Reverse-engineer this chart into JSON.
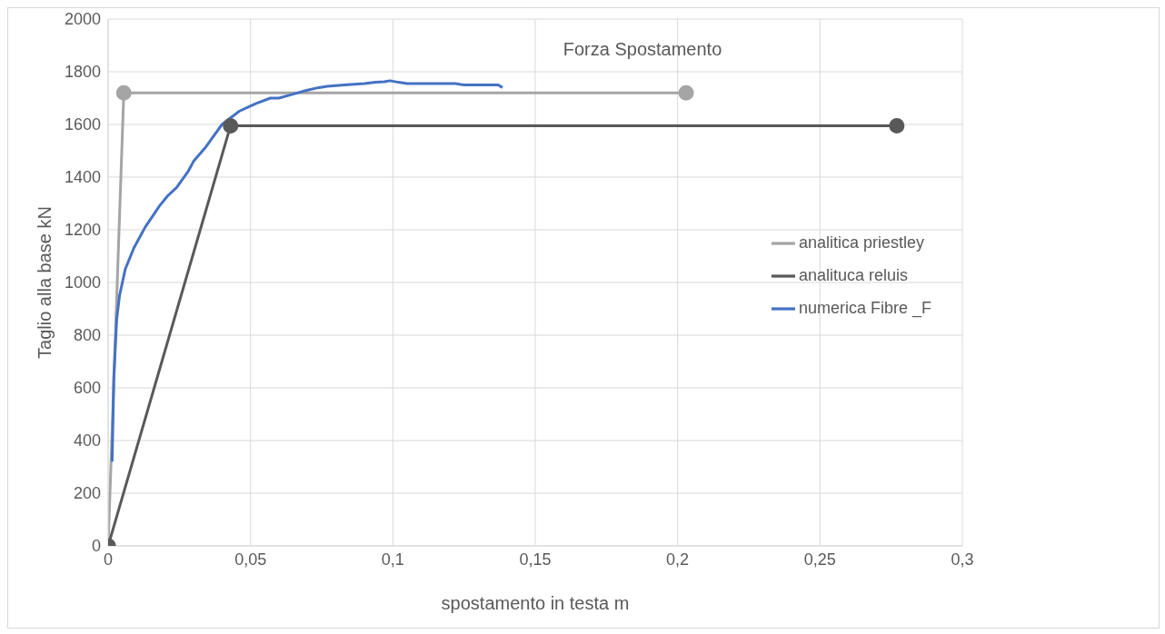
{
  "chart_data": {
    "type": "line",
    "title": "Forza Spostamento",
    "xlabel": "spostamento in testa   m",
    "ylabel": "Taglio alla base  kN",
    "xlim": [
      0,
      0.3
    ],
    "xticks": [
      0,
      {
        "value": 0.05,
        "label": "0,05"
      },
      {
        "value": 0.1,
        "label": "0,1"
      },
      {
        "value": 0.15,
        "label": "0,15"
      },
      {
        "value": 0.2,
        "label": "0,2"
      },
      {
        "value": 0.25,
        "label": "0,25"
      },
      {
        "value": 0.3,
        "label": "0,3"
      }
    ],
    "ylim": [
      0,
      2000
    ],
    "yticks": [
      0,
      200,
      400,
      600,
      800,
      1000,
      1200,
      1400,
      1600,
      1800,
      2000
    ],
    "grid": true,
    "legend": "right",
    "series": [
      {
        "name": "analitica priestley",
        "color": "#a5a5a5",
        "marker": "circle",
        "x": [
          0,
          0.0055,
          0.203
        ],
        "values": [
          0,
          1720,
          1720
        ]
      },
      {
        "name": "numerica Fibre _F",
        "color": "#4472c4",
        "marker": "none",
        "x": [
          0.0014,
          0.002,
          0.003,
          0.004,
          0.006,
          0.009,
          0.013,
          0.018,
          0.021,
          0.024,
          0.028,
          0.03,
          0.034,
          0.036,
          0.04,
          0.043,
          0.046,
          0.049,
          0.052,
          0.057,
          0.06,
          0.065,
          0.07,
          0.074,
          0.077,
          0.083,
          0.09,
          0.094,
          0.097,
          0.099,
          0.102,
          0.105,
          0.122,
          0.125,
          0.137,
          0.1385
        ],
        "values": [
          320,
          640,
          860,
          950,
          1050,
          1130,
          1210,
          1290,
          1330,
          1360,
          1420,
          1460,
          1510,
          1540,
          1600,
          1625,
          1650,
          1665,
          1680,
          1700,
          1700,
          1715,
          1730,
          1740,
          1745,
          1750,
          1755,
          1760,
          1762,
          1766,
          1760,
          1755,
          1755,
          1750,
          1750,
          1740
        ]
      },
      {
        "name": "analituca reluis",
        "color": "#595959",
        "marker": "circle",
        "x": [
          0,
          0.043,
          0.277
        ],
        "values": [
          0,
          1595,
          1595
        ]
      }
    ]
  }
}
